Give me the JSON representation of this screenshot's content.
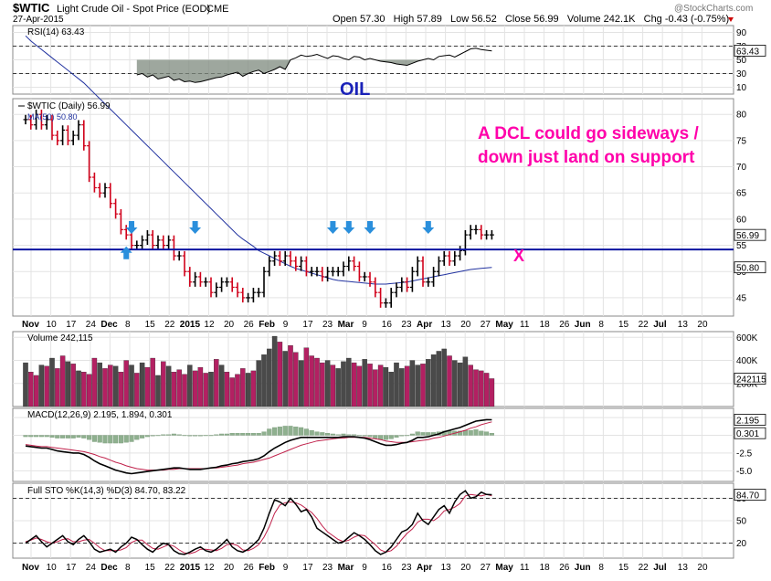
{
  "header": {
    "symbol": "$WTIC",
    "name": "Light Crude Oil - Spot Price (EOD)",
    "exchange": "CME",
    "date": "27-Apr-2015",
    "quote": "Open 57.30   High 57.89   Low 56.52   Close 56.99   Volume 242.1K   Chg -0.43 (-0.75%)",
    "logo": "@StockCharts.com"
  },
  "colors": {
    "background": "#ffffff",
    "panel_bg": "#ffffff",
    "grid": "#e3e3e3",
    "price_up": "#000000",
    "price_down": "#d0021b",
    "ma": "#2233a0",
    "support": "#0a14a0",
    "annotation": "#ff00aa",
    "arrow": "#2a8fdc",
    "volume_up": "#4a4a4a",
    "volume_down": "#b32062",
    "rsi": "#000000",
    "rsi_fill": "#7e8a7e",
    "macd": "#000000",
    "signal": "#c0204a",
    "histogram": "#8fb08f",
    "sto_k": "#000000",
    "sto_d": "#c0204a"
  },
  "x_axis": {
    "labels": [
      "Nov",
      "10",
      "17",
      "24",
      "Dec",
      "8",
      "15",
      "22",
      "2015",
      "12",
      "20",
      "26",
      "Feb",
      "9",
      "17",
      "23",
      "Mar",
      "9",
      "16",
      "23",
      "Apr",
      "13",
      "20",
      "27",
      "May",
      "11",
      "18",
      "26",
      "Jun",
      "8",
      "15",
      "22",
      "Jul",
      "13",
      "20"
    ],
    "bold": [
      "Nov",
      "Dec",
      "2015",
      "Feb",
      "Mar",
      "Apr",
      "May",
      "Jun",
      "Jul"
    ]
  },
  "chart_data": [
    {
      "type": "line",
      "name": "rsi",
      "title": "RSI(14) 63.43",
      "ylim": [
        0,
        100
      ],
      "y_ticks": [
        90,
        70,
        50,
        30,
        10
      ],
      "last_value": "63.43",
      "annotation": "OIL",
      "values": [
        28,
        30,
        25,
        28,
        22,
        24,
        26,
        20,
        22,
        18,
        19,
        17,
        18,
        20,
        22,
        24,
        25,
        28,
        30,
        32,
        26,
        30,
        33,
        35,
        30,
        33,
        36,
        40,
        36,
        50,
        53,
        57,
        55,
        56,
        58,
        55,
        52,
        56,
        55,
        52,
        50,
        55,
        54,
        50,
        52,
        50,
        48,
        47,
        46,
        44,
        43,
        42,
        45,
        48,
        50,
        52,
        50,
        55,
        56,
        57,
        54,
        58,
        62,
        66,
        67,
        65,
        64,
        63
      ]
    },
    {
      "type": "ohlc",
      "name": "price",
      "title": "$WTIC (Daily) 56.99",
      "ma_label": "MA(50) 50.80",
      "ylim": [
        41.5,
        83
      ],
      "y_ticks": [
        80,
        75,
        70,
        65,
        60,
        55,
        50,
        45
      ],
      "last_value": "56.99",
      "ma_last_value": "50.80",
      "support_level": 54.2,
      "close": [
        79,
        78,
        80,
        78,
        79,
        76,
        75,
        77,
        75,
        76,
        78,
        74,
        68,
        66,
        65,
        66,
        63,
        61,
        58,
        57,
        55,
        55,
        56,
        57,
        55,
        56,
        55,
        56,
        53,
        53,
        50,
        48,
        49,
        48,
        48,
        46,
        47,
        48,
        48,
        47,
        46,
        45,
        45,
        46,
        46,
        50,
        52,
        53,
        52,
        53,
        52,
        51,
        52,
        50,
        50,
        50,
        49,
        50,
        50,
        50,
        51,
        52,
        51,
        49,
        49,
        48,
        46,
        44,
        44,
        46,
        47,
        48,
        47,
        50,
        52,
        48,
        48,
        50,
        52,
        53,
        52,
        53,
        54,
        57,
        58,
        58,
        57,
        57,
        57
      ],
      "ma50": [
        95,
        94,
        93.2,
        92.4,
        91.6,
        90.8,
        90,
        89.2,
        88.4,
        87.6,
        86.8,
        86,
        85,
        84,
        83,
        82,
        81,
        80,
        79,
        78,
        77,
        76,
        75,
        74,
        73,
        72,
        71,
        70,
        69,
        68,
        67,
        66,
        65,
        64,
        63,
        62,
        61,
        60,
        59,
        58,
        57,
        56.2,
        55.5,
        54.8,
        54,
        53.5,
        53,
        52.5,
        52,
        51.5,
        51,
        50.6,
        50.3,
        50,
        49.7,
        49.4,
        49.1,
        48.8,
        48.5,
        48.3,
        48.2,
        48.1,
        48,
        47.9,
        47.8,
        47.7,
        47.6,
        47.6,
        47.6,
        47.7,
        47.8,
        47.9,
        48,
        48.2,
        48.4,
        48.6,
        48.8,
        49,
        49.2,
        49.4,
        49.6,
        49.8,
        50,
        50.2,
        50.4,
        50.5,
        50.6,
        50.7,
        50.8
      ],
      "arrows_down": [
        20,
        32,
        58,
        61,
        65,
        95
      ],
      "arrows_up": [
        19
      ],
      "annotation": [
        "A DCL could go sideways /",
        "down just land on support"
      ],
      "marker": "X"
    },
    {
      "type": "bar",
      "name": "volume",
      "title": "Volume 242,115",
      "ylim": [
        0,
        650000
      ],
      "y_ticks": [
        "600K",
        "400K",
        "200K"
      ],
      "last_value": "242115",
      "values": [
        380000,
        300000,
        270000,
        360000,
        350000,
        420000,
        330000,
        440000,
        390000,
        370000,
        310000,
        300000,
        280000,
        420000,
        380000,
        330000,
        360000,
        350000,
        300000,
        400000,
        360000,
        290000,
        380000,
        340000,
        420000,
        270000,
        390000,
        350000,
        300000,
        320000,
        280000,
        360000,
        310000,
        340000,
        290000,
        300000,
        410000,
        360000,
        300000,
        250000,
        280000,
        330000,
        290000,
        310000,
        400000,
        450000,
        500000,
        610000,
        560000,
        480000,
        530000,
        470000,
        400000,
        510000,
        440000,
        420000,
        380000,
        400000,
        360000,
        330000,
        390000,
        420000,
        380000,
        350000,
        410000,
        370000,
        320000,
        360000,
        340000,
        300000,
        380000,
        330000,
        350000,
        400000,
        360000,
        370000,
        410000,
        450000,
        480000,
        500000,
        440000,
        400000,
        380000,
        430000,
        360000,
        320000,
        310000,
        290000,
        242115
      ],
      "up": [
        1,
        0,
        0,
        1,
        0,
        1,
        0,
        0,
        1,
        0,
        1,
        0,
        0,
        0,
        1,
        0,
        0,
        1,
        0,
        0,
        1,
        0,
        1,
        0,
        0,
        1,
        0,
        1,
        0,
        0,
        0,
        1,
        0,
        0,
        0,
        1,
        0,
        1,
        0,
        0,
        0,
        0,
        1,
        0,
        1,
        1,
        1,
        1,
        0,
        1,
        0,
        0,
        1,
        0,
        0,
        0,
        0,
        1,
        0,
        1,
        1,
        1,
        0,
        0,
        1,
        0,
        0,
        0,
        1,
        1,
        1,
        1,
        0,
        1,
        1,
        0,
        1,
        1,
        1,
        1,
        0,
        1,
        1,
        1,
        0,
        0,
        0,
        0,
        0
      ]
    },
    {
      "type": "line",
      "name": "macd",
      "title": "MACD(12,26,9) 2.195, 1.894, 0.301",
      "ylim": [
        -6.5,
        3.8
      ],
      "y_ticks": [
        2.5,
        0.0,
        -2.5,
        -5.0
      ],
      "last_value": "2.195",
      "hist_last_value": "0.301",
      "macd": [
        -1.5,
        -1.6,
        -1.7,
        -1.8,
        -1.8,
        -2.0,
        -2.2,
        -2.3,
        -2.4,
        -2.5,
        -2.5,
        -2.7,
        -3.1,
        -3.6,
        -4.0,
        -4.3,
        -4.6,
        -4.9,
        -5.1,
        -5.3,
        -5.4,
        -5.3,
        -5.2,
        -5.1,
        -5.0,
        -4.9,
        -4.8,
        -4.7,
        -4.6,
        -4.6,
        -4.7,
        -4.8,
        -4.8,
        -4.8,
        -4.7,
        -4.6,
        -4.5,
        -4.3,
        -4.2,
        -4.0,
        -3.9,
        -3.7,
        -3.6,
        -3.5,
        -3.3,
        -2.9,
        -2.3,
        -1.8,
        -1.4,
        -1.0,
        -0.7,
        -0.5,
        -0.3,
        -0.3,
        -0.3,
        -0.3,
        -0.3,
        -0.3,
        -0.3,
        -0.3,
        -0.2,
        -0.2,
        -0.2,
        -0.3,
        -0.4,
        -0.6,
        -0.9,
        -1.2,
        -1.4,
        -1.4,
        -1.3,
        -1.1,
        -1.0,
        -0.7,
        -0.3,
        -0.3,
        -0.2,
        0.0,
        0.2,
        0.5,
        0.7,
        0.9,
        1.1,
        1.4,
        1.7,
        2.0,
        2.1,
        2.2,
        2.195
      ],
      "signal": [
        -1.3,
        -1.4,
        -1.5,
        -1.6,
        -1.6,
        -1.7,
        -1.8,
        -1.9,
        -2.0,
        -2.1,
        -2.2,
        -2.3,
        -2.5,
        -2.7,
        -3.0,
        -3.2,
        -3.5,
        -3.8,
        -4.0,
        -4.3,
        -4.5,
        -4.7,
        -4.8,
        -4.9,
        -4.9,
        -4.9,
        -4.9,
        -4.8,
        -4.8,
        -4.7,
        -4.7,
        -4.7,
        -4.7,
        -4.7,
        -4.7,
        -4.6,
        -4.6,
        -4.5,
        -4.4,
        -4.3,
        -4.2,
        -4.0,
        -3.9,
        -3.8,
        -3.6,
        -3.4,
        -3.2,
        -2.9,
        -2.6,
        -2.3,
        -2.0,
        -1.7,
        -1.4,
        -1.2,
        -1.0,
        -0.8,
        -0.7,
        -0.6,
        -0.5,
        -0.4,
        -0.4,
        -0.3,
        -0.3,
        -0.3,
        -0.3,
        -0.4,
        -0.5,
        -0.6,
        -0.8,
        -0.9,
        -1.0,
        -1.0,
        -1.0,
        -0.9,
        -0.8,
        -0.7,
        -0.6,
        -0.4,
        -0.3,
        -0.1,
        0.1,
        0.3,
        0.5,
        0.7,
        1.0,
        1.2,
        1.5,
        1.7,
        1.894
      ],
      "hist": [
        -0.2,
        -0.2,
        -0.2,
        -0.2,
        -0.2,
        -0.3,
        -0.4,
        -0.4,
        -0.4,
        -0.4,
        -0.3,
        -0.4,
        -0.6,
        -0.9,
        -1.0,
        -1.1,
        -1.1,
        -1.1,
        -1.1,
        -1.0,
        -0.9,
        -0.6,
        -0.4,
        -0.2,
        -0.1,
        0.0,
        0.1,
        0.1,
        0.2,
        0.1,
        0.0,
        -0.1,
        -0.1,
        -0.1,
        0.0,
        0.0,
        0.1,
        0.2,
        0.2,
        0.3,
        0.3,
        0.3,
        0.3,
        0.3,
        0.3,
        0.5,
        0.9,
        1.1,
        1.2,
        1.3,
        1.3,
        1.2,
        1.1,
        0.9,
        0.7,
        0.5,
        0.4,
        0.3,
        0.2,
        0.1,
        0.2,
        0.1,
        0.1,
        0.0,
        -0.1,
        -0.2,
        -0.4,
        -0.6,
        -0.6,
        -0.5,
        -0.3,
        -0.1,
        0.0,
        0.2,
        0.5,
        0.4,
        0.4,
        0.4,
        0.5,
        0.6,
        0.6,
        0.6,
        0.6,
        0.7,
        0.7,
        0.8,
        0.6,
        0.5,
        0.301
      ]
    },
    {
      "type": "line",
      "name": "stochastic",
      "title": "Full STO %K(14,3) %D(3) 84.70, 83.22",
      "ylim": [
        0,
        100
      ],
      "y_ticks": [
        80,
        50,
        20
      ],
      "last_value": "84.70",
      "k": [
        20,
        25,
        30,
        22,
        15,
        20,
        25,
        30,
        22,
        18,
        25,
        30,
        22,
        12,
        8,
        10,
        12,
        8,
        15,
        20,
        28,
        25,
        18,
        12,
        8,
        15,
        20,
        18,
        10,
        6,
        5,
        8,
        12,
        15,
        10,
        8,
        12,
        18,
        25,
        15,
        10,
        8,
        12,
        18,
        25,
        40,
        60,
        78,
        75,
        70,
        80,
        72,
        62,
        65,
        55,
        40,
        35,
        30,
        25,
        20,
        22,
        28,
        34,
        30,
        25,
        18,
        10,
        5,
        8,
        15,
        25,
        35,
        38,
        45,
        60,
        50,
        45,
        55,
        65,
        70,
        60,
        75,
        85,
        90,
        80,
        82,
        88,
        85,
        84.7
      ],
      "d": [
        22,
        24,
        27,
        25,
        22,
        20,
        22,
        25,
        26,
        22,
        22,
        24,
        25,
        20,
        14,
        10,
        10,
        10,
        11,
        14,
        21,
        24,
        24,
        18,
        13,
        12,
        15,
        18,
        16,
        11,
        7,
        6,
        8,
        12,
        12,
        11,
        10,
        13,
        18,
        19,
        17,
        11,
        10,
        13,
        18,
        28,
        42,
        60,
        71,
        74,
        75,
        74,
        71,
        66,
        61,
        53,
        43,
        35,
        30,
        25,
        22,
        24,
        28,
        31,
        30,
        24,
        18,
        11,
        8,
        10,
        16,
        25,
        33,
        39,
        48,
        52,
        52,
        50,
        55,
        63,
        65,
        68,
        73,
        83,
        85,
        84,
        83,
        85,
        83.22
      ]
    }
  ]
}
